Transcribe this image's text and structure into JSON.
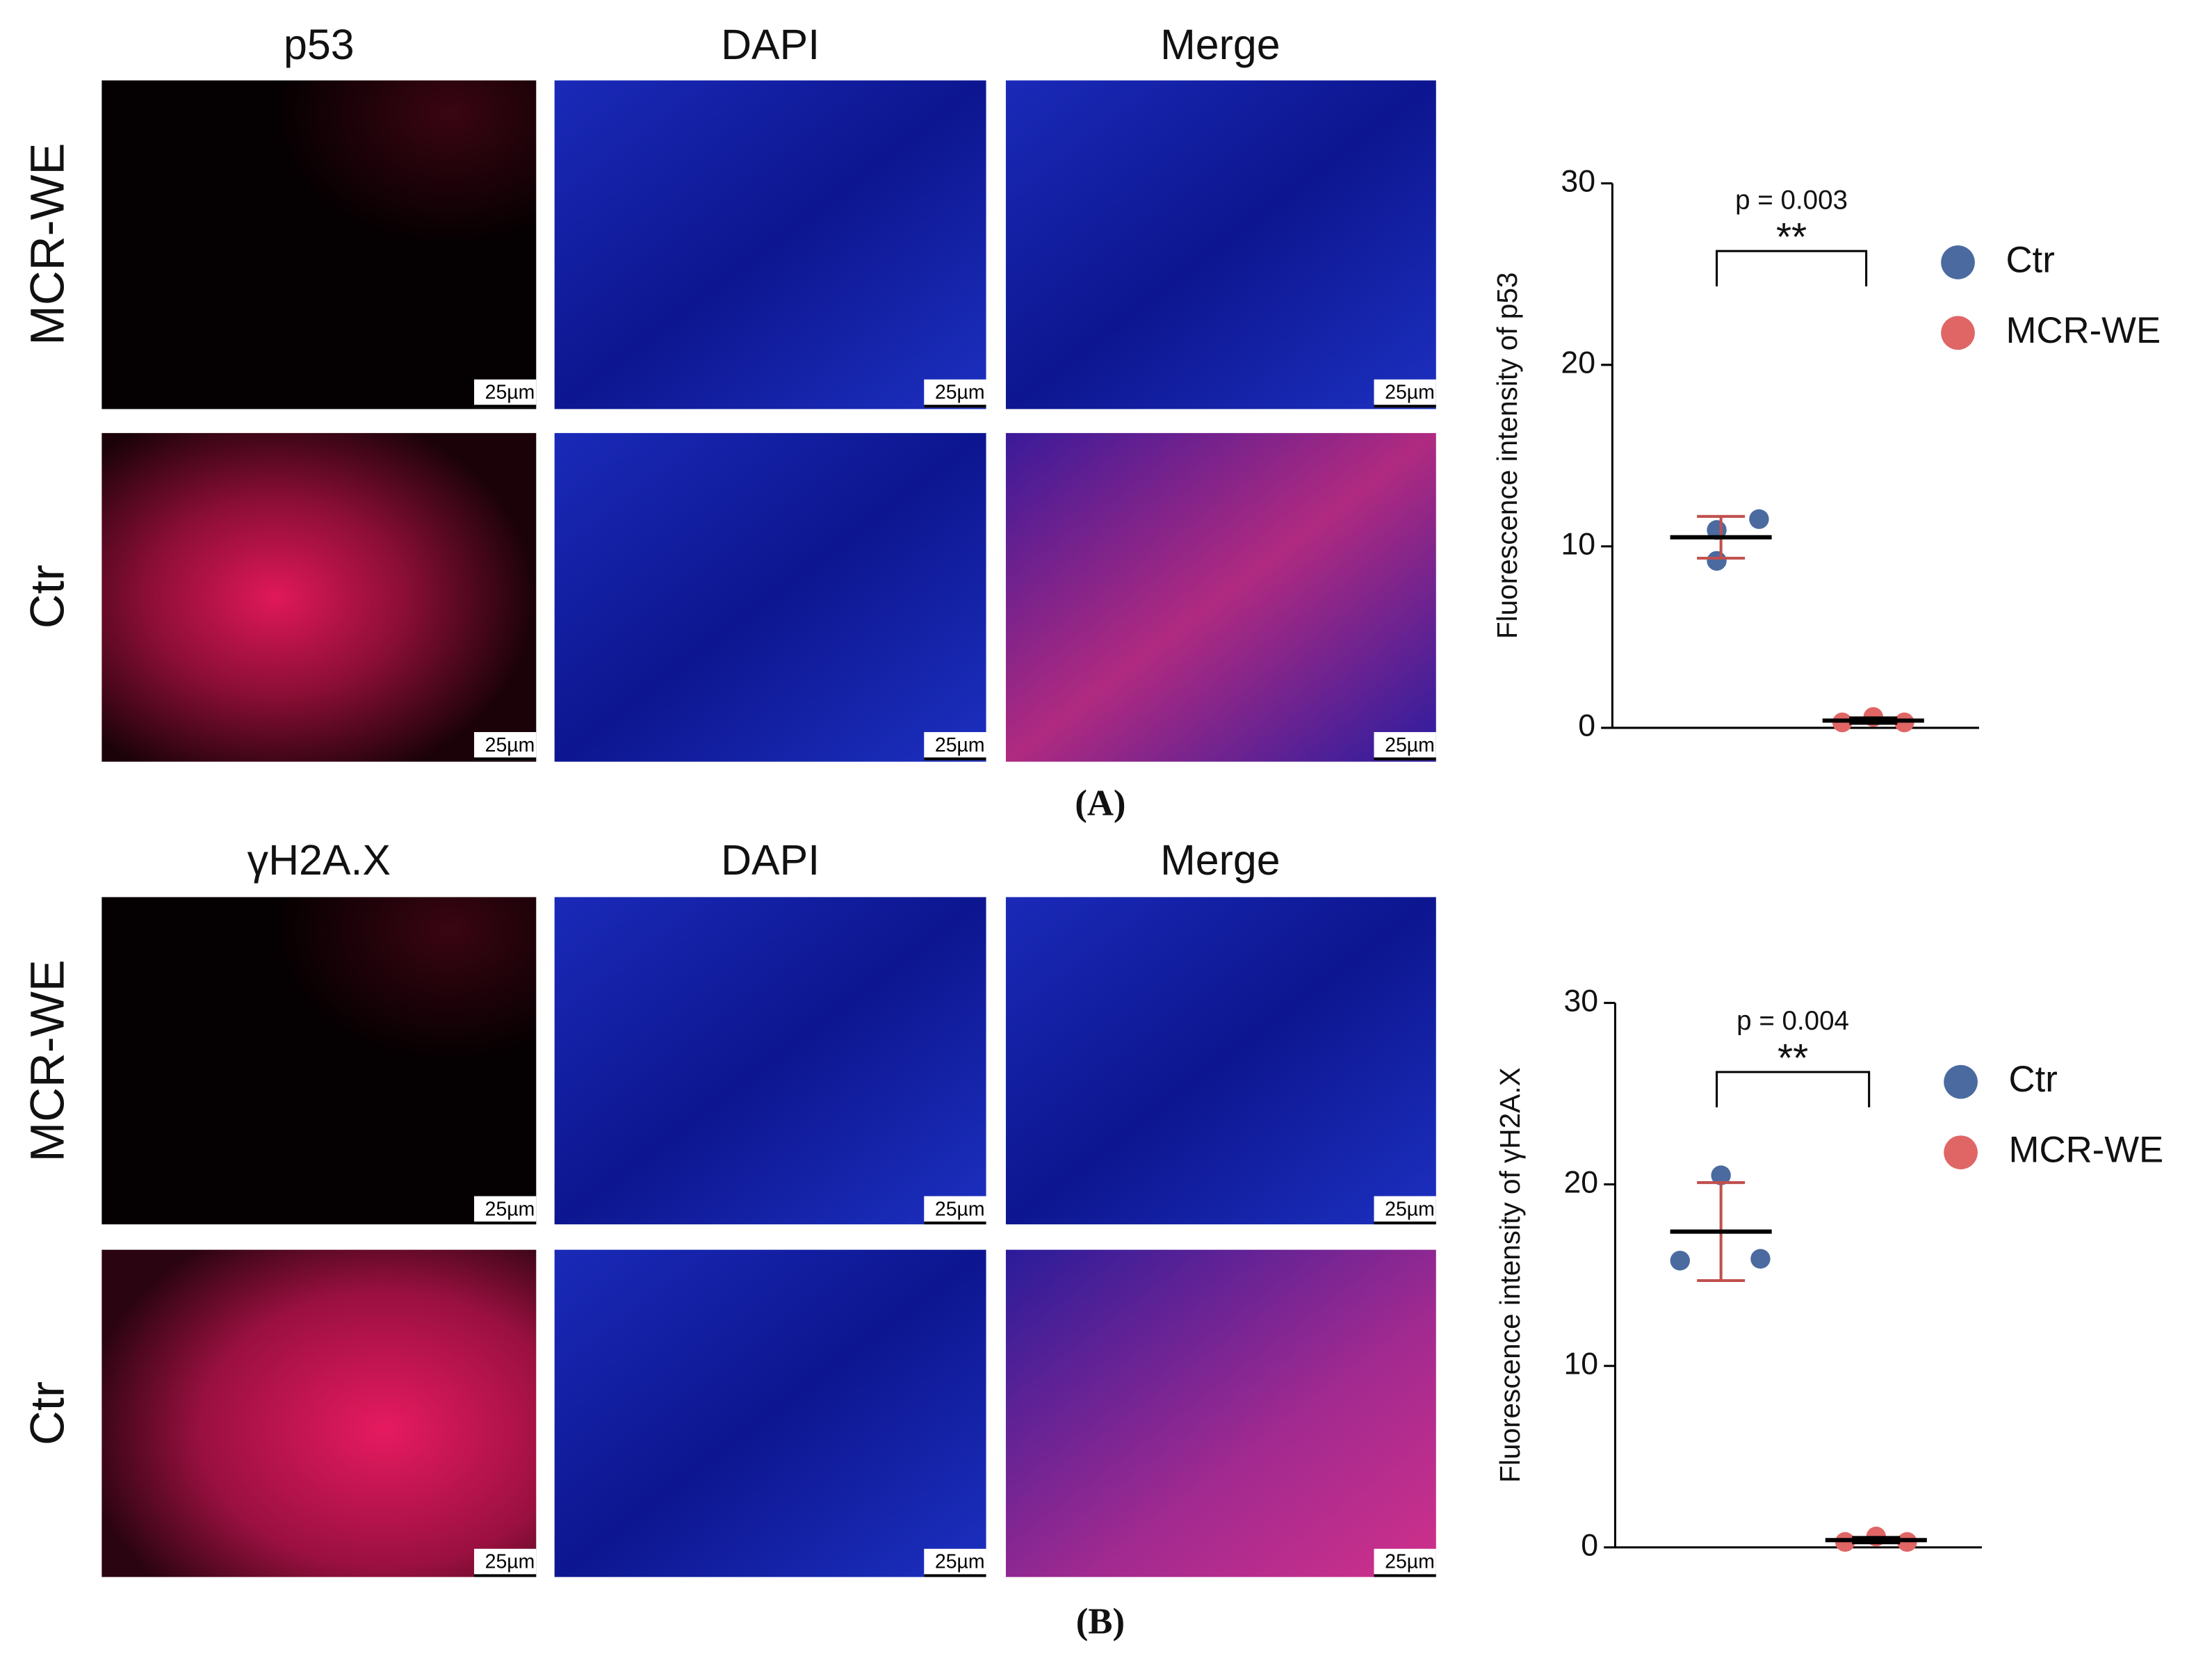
{
  "panels": [
    {
      "label": "(A)",
      "columns": [
        "p53",
        "DAPI",
        "Merge"
      ],
      "rows": [
        "MCR-WE",
        "Ctr"
      ],
      "scale_bar": "25µm"
    },
    {
      "label": "(B)",
      "columns": [
        "γH2A.X",
        "DAPI",
        "Merge"
      ],
      "rows": [
        "MCR-WE",
        "Ctr"
      ],
      "scale_bar": "25µm"
    }
  ],
  "chart_data": [
    {
      "type": "scatter",
      "y_label": "Fluorescence intensity of p53",
      "ylim": [
        0,
        30
      ],
      "yticks": [
        0,
        10,
        20,
        30
      ],
      "p_label": "p = 0.003",
      "significance": "**",
      "legend": "right",
      "error_color": "#c0504d",
      "series": [
        {
          "name": "Ctr",
          "color": "#4a6aa0",
          "values": [
            10.9,
            11.5,
            9.2
          ],
          "mean": 10.5,
          "error": 1.15
        },
        {
          "name": "MCR-WE",
          "color": "#e06666",
          "values": [
            0.3,
            0.6,
            0.3
          ],
          "mean": 0.4,
          "error": 0.15
        }
      ]
    },
    {
      "type": "scatter",
      "y_label": "Fluorescence intensity of γH2A.X",
      "ylim": [
        0,
        30
      ],
      "yticks": [
        0,
        10,
        20,
        30
      ],
      "p_label": "p = 0.004",
      "significance": "**",
      "legend": "right",
      "error_color": "#c0504d",
      "series": [
        {
          "name": "Ctr",
          "color": "#4a6aa0",
          "values": [
            20.5,
            15.8,
            15.9
          ],
          "mean": 17.4,
          "error": 2.7
        },
        {
          "name": "MCR-WE",
          "color": "#e06666",
          "values": [
            0.3,
            0.6,
            0.3
          ],
          "mean": 0.4,
          "error": 0.15
        }
      ]
    }
  ]
}
